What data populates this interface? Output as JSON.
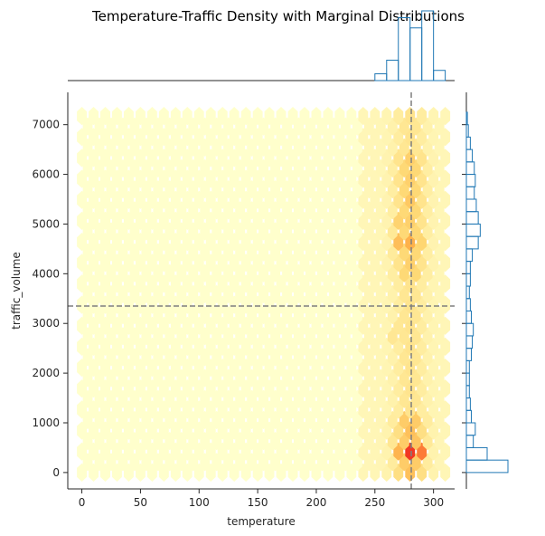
{
  "chart_data": {
    "type": "hexbin",
    "title": "Temperature-Traffic Density with Marginal Distributions",
    "xlabel": "temperature",
    "ylabel": "traffic_volume",
    "xlim": [
      -12,
      318
    ],
    "ylim": [
      -330,
      7650
    ],
    "xticks": [
      "0",
      "50",
      "100",
      "150",
      "200",
      "250",
      "300"
    ],
    "yticks": [
      "0",
      "1000",
      "2000",
      "3000",
      "4000",
      "5000",
      "6000",
      "7000"
    ],
    "reference_lines": {
      "mean_temperature": 281,
      "mean_traffic_volume": 3350,
      "style": "dashed",
      "color": "#7f7f7f"
    },
    "colormap": "YlOrRd",
    "density_hotspots": [
      {
        "temperature": 285,
        "traffic_volume": 450,
        "level": 1.0
      },
      {
        "temperature": 275,
        "traffic_volume": 450,
        "level": 0.72
      },
      {
        "temperature": 280,
        "traffic_volume": 450,
        "level": 0.7
      },
      {
        "temperature": 290,
        "traffic_volume": 450,
        "level": 0.55
      },
      {
        "temperature": 280,
        "traffic_volume": 700,
        "level": 0.55
      },
      {
        "temperature": 270,
        "traffic_volume": 700,
        "level": 0.38
      },
      {
        "temperature": 290,
        "traffic_volume": 700,
        "level": 0.35
      },
      {
        "temperature": 280,
        "traffic_volume": 250,
        "level": 0.42
      },
      {
        "temperature": 270,
        "traffic_volume": 450,
        "level": 0.38
      },
      {
        "temperature": 280,
        "traffic_volume": 4850,
        "level": 0.5
      },
      {
        "temperature": 270,
        "traffic_volume": 4550,
        "level": 0.45
      },
      {
        "temperature": 270,
        "traffic_volume": 4950,
        "level": 0.42
      },
      {
        "temperature": 280,
        "traffic_volume": 4650,
        "level": 0.38
      },
      {
        "temperature": 290,
        "traffic_volume": 4550,
        "level": 0.35
      },
      {
        "temperature": 280,
        "traffic_volume": 5450,
        "level": 0.32
      },
      {
        "temperature": 270,
        "traffic_volume": 2800,
        "level": 0.36
      }
    ],
    "x_marginal": {
      "bin_edges": [
        250,
        260,
        270,
        280,
        290,
        300,
        310
      ],
      "counts": [
        4,
        12,
        37,
        31,
        41,
        6
      ]
    },
    "y_marginal": {
      "bin_edges": [
        0,
        250,
        500,
        750,
        1000,
        1250,
        1500,
        1750,
        2000,
        2250,
        2500,
        2750,
        3000,
        3250,
        3500,
        3750,
        4000,
        4250,
        4500,
        4750,
        5000,
        5250,
        5500,
        5750,
        6000,
        6250,
        6500,
        6750,
        7000,
        7250
      ],
      "counts": [
        42,
        21,
        7,
        9,
        5,
        4,
        3,
        3,
        3,
        5,
        6,
        7,
        5,
        4,
        3,
        4,
        4,
        6,
        12,
        14,
        12,
        10,
        8,
        9,
        8,
        6,
        4,
        2,
        1
      ]
    }
  }
}
